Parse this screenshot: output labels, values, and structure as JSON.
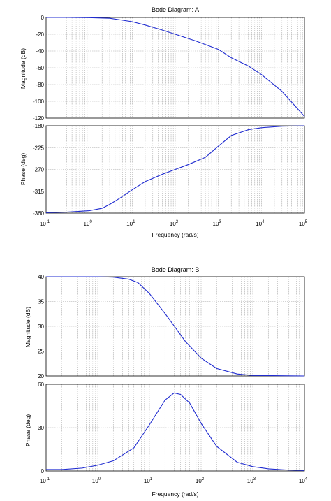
{
  "chart_data": [
    {
      "type": "line",
      "title": "Bode Diagram: A",
      "xlabel": "Frequency  (rad/s)",
      "xscale": "log",
      "xlim": [
        0.1,
        100000
      ],
      "x_tick_labels": [
        {
          "base": "10",
          "exp": "-1"
        },
        {
          "base": "10",
          "exp": "0"
        },
        {
          "base": "10",
          "exp": "1"
        },
        {
          "base": "10",
          "exp": "2"
        },
        {
          "base": "10",
          "exp": "3"
        },
        {
          "base": "10",
          "exp": "4"
        },
        {
          "base": "10",
          "exp": "5"
        }
      ],
      "grid": true,
      "panels": [
        {
          "name": "magnitude",
          "ylabel": "Magnitude (dB)",
          "ylim": [
            -120,
            0
          ],
          "yticks": [
            "0",
            "-20",
            "-40",
            "-60",
            "-80",
            "-100",
            "-120"
          ],
          "x": [
            0.1,
            0.3,
            1,
            3,
            10,
            20,
            50,
            100,
            300,
            1000,
            2000,
            5000,
            10000,
            30000,
            100000
          ],
          "y": [
            0,
            0,
            -0.3,
            -1,
            -5,
            -9,
            -15,
            -20,
            -28,
            -38,
            -48,
            -58,
            -68,
            -88,
            -118
          ]
        },
        {
          "name": "phase",
          "ylabel": "Phase (deg)",
          "ylim": [
            -360,
            -180
          ],
          "yticks": [
            "-180",
            "-225",
            "-270",
            "-315",
            "-360"
          ],
          "x": [
            0.1,
            0.3,
            1,
            2,
            3,
            5,
            10,
            20,
            50,
            100,
            200,
            500,
            1000,
            2000,
            5000,
            10000,
            30000,
            100000
          ],
          "y": [
            -359,
            -358,
            -355,
            -350,
            -342,
            -330,
            -312,
            -295,
            -280,
            -270,
            -260,
            -245,
            -222,
            -200,
            -188,
            -184,
            -181,
            -180
          ]
        }
      ]
    },
    {
      "type": "line",
      "title": "Bode Diagram: B",
      "xlabel": "Frequency  (rad/s)",
      "xscale": "log",
      "xlim": [
        0.1,
        10000
      ],
      "x_tick_labels": [
        {
          "base": "10",
          "exp": "-1"
        },
        {
          "base": "10",
          "exp": "0"
        },
        {
          "base": "10",
          "exp": "1"
        },
        {
          "base": "10",
          "exp": "2"
        },
        {
          "base": "10",
          "exp": "3"
        },
        {
          "base": "10",
          "exp": "4"
        }
      ],
      "grid": true,
      "panels": [
        {
          "name": "magnitude",
          "ylabel": "Magnitude (dB)",
          "ylim": [
            20,
            40
          ],
          "yticks": [
            "40",
            "35",
            "30",
            "25",
            "20"
          ],
          "x": [
            0.1,
            0.5,
            1,
            2,
            4,
            6,
            10,
            20,
            30,
            50,
            100,
            200,
            500,
            1000,
            10000
          ],
          "y": [
            40,
            40,
            40,
            39.9,
            39.5,
            38.8,
            36.6,
            32.6,
            30.1,
            26.9,
            23.6,
            21.5,
            20.4,
            20.1,
            20
          ]
        },
        {
          "name": "phase",
          "ylabel": "Phase (deg)",
          "ylim": [
            0,
            60
          ],
          "yticks": [
            "60",
            "30",
            "0"
          ],
          "x": [
            0.1,
            0.2,
            0.5,
            1,
            2,
            5,
            10,
            20,
            30,
            40,
            60,
            100,
            200,
            500,
            1000,
            2000,
            5000,
            10000
          ],
          "y": [
            1,
            1,
            2,
            4,
            7,
            16,
            32,
            49,
            54,
            53,
            47,
            33,
            17,
            6,
            3,
            1.5,
            0.6,
            0.3
          ]
        }
      ]
    }
  ]
}
